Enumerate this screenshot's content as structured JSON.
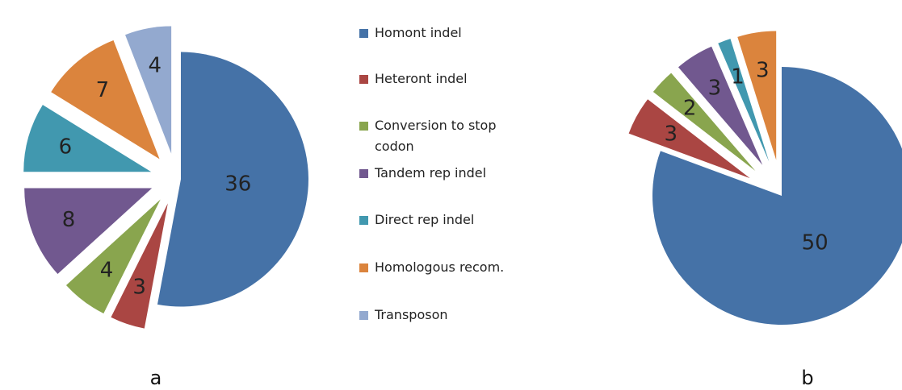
{
  "legend": {
    "categories": [
      "Homont indel",
      "Heteront indel",
      "Conversion to stop codon",
      "Tandem rep indel",
      "Direct rep indel",
      "Homologous recom.",
      "Transposon"
    ],
    "colors": [
      "#4572a7",
      "#aa4643",
      "#89a54e",
      "#71588f",
      "#4198af",
      "#db843d",
      "#93a9cf"
    ]
  },
  "chart_data": [
    {
      "type": "pie",
      "label": "a",
      "values": [
        36,
        3,
        4,
        8,
        6,
        7,
        4
      ]
    },
    {
      "type": "pie",
      "label": "b",
      "values": [
        50,
        3,
        2,
        3,
        1,
        3
      ]
    }
  ]
}
